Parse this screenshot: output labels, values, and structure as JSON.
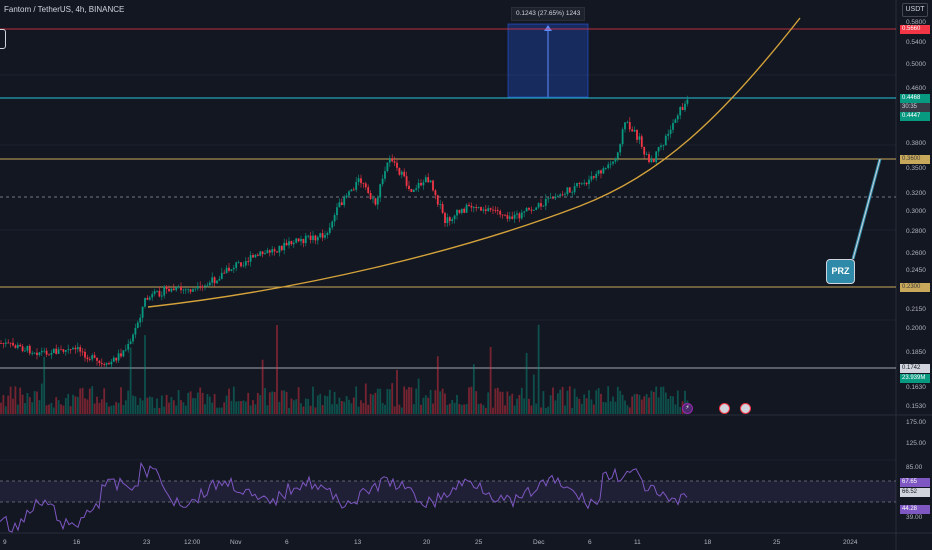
{
  "header": {
    "symbol_title": "Fantom / TetherUS, 4h, BINANCE",
    "currency": "USDT"
  },
  "measure": {
    "label": "0.1243 (27.65%) 1243"
  },
  "annotation": {
    "prz_label": "PRZ"
  },
  "price_axis": {
    "labels": [
      "0.5800",
      "0.5400",
      "0.5000",
      "0.4600",
      "0.3800",
      "0.3500",
      "0.3200",
      "0.3000",
      "0.2800",
      "0.2600",
      "0.2450",
      "0.2150",
      "0.2000",
      "0.1850",
      "0.1630",
      "0.1530"
    ]
  },
  "price_tags": {
    "top_red": "0.5660",
    "current_price": "0.4468",
    "countdown": "30:35",
    "current_low": "0.4447",
    "gold_upper": "0.3600",
    "gold_lower": "0.2300",
    "volume_price": "0.1742",
    "volume_value": "23.939M"
  },
  "rsi_axis": {
    "labels": [
      "175.00",
      "125.00",
      "85.00",
      "39.00"
    ],
    "tags": {
      "upper_band": "67.65",
      "rsi_value": "66.52",
      "lower_band": "44.28"
    }
  },
  "time_axis": {
    "labels": [
      "9",
      "16",
      "23",
      "12:00",
      "Nov",
      "6",
      "13",
      "20",
      "25",
      "Dec",
      "6",
      "11",
      "18",
      "25",
      "2024"
    ]
  },
  "events": {
    "flash_icon": "flash-icon",
    "earnings_icon": "earnings-icon"
  },
  "colors": {
    "background": "#131722",
    "bull": "#089981",
    "bear": "#f23645",
    "parabola": "#d4a23a",
    "resistance": "#26a69a",
    "rsi": "#7e57c2"
  }
}
